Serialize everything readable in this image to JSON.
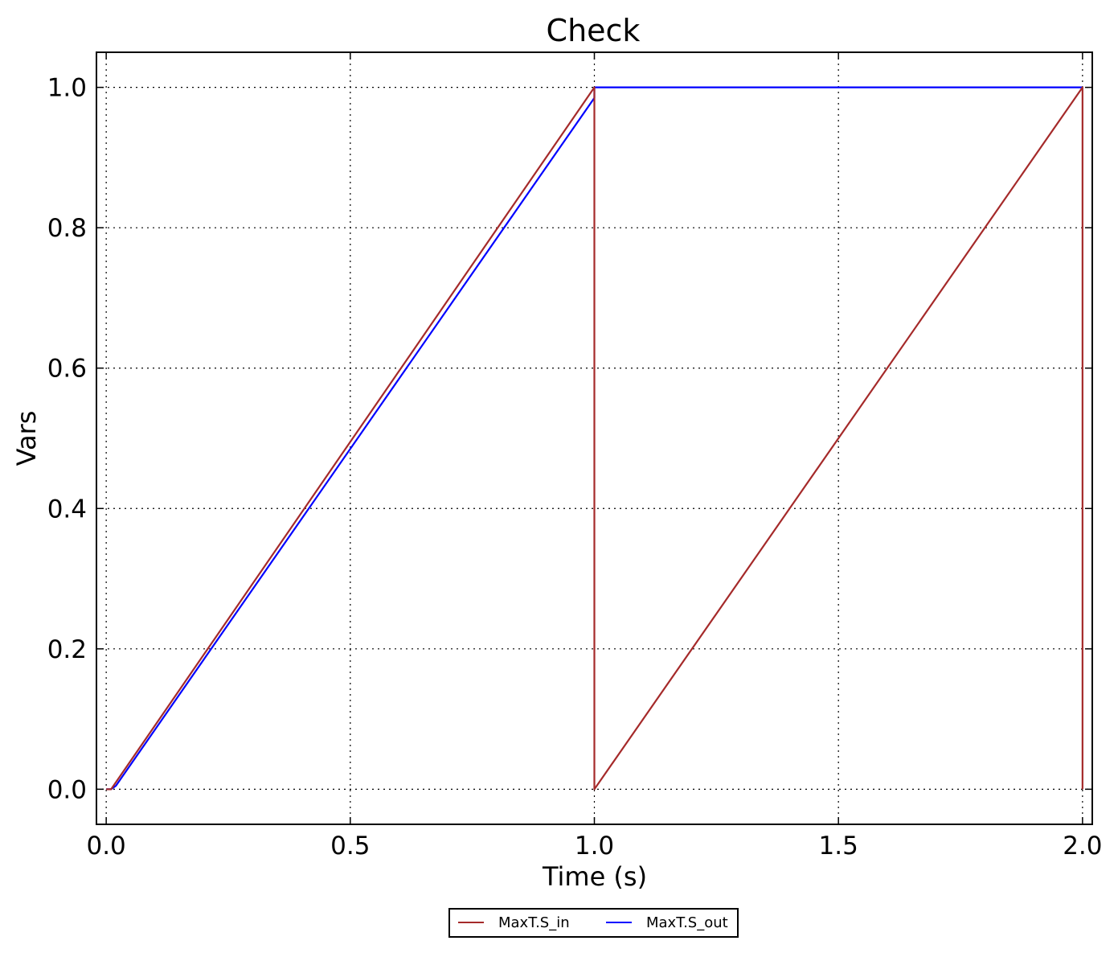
{
  "chart_data": {
    "type": "line",
    "title": "Check",
    "xlabel": "Time (s)",
    "ylabel": "Vars",
    "xlim": [
      -0.02,
      2.02
    ],
    "ylim": [
      -0.05,
      1.05
    ],
    "x_ticks": [
      0.0,
      0.5,
      1.0,
      1.5,
      2.0
    ],
    "x_tick_labels": [
      "0.0",
      "0.5",
      "1.0",
      "1.5",
      "2.0"
    ],
    "y_ticks": [
      0.0,
      0.2,
      0.4,
      0.6,
      0.8,
      1.0
    ],
    "y_tick_labels": [
      "0.0",
      "0.2",
      "0.4",
      "0.6",
      "0.8",
      "1.0"
    ],
    "grid": true,
    "grid_style": "dotted",
    "legend_position": "bottom-center, below plot",
    "series": [
      {
        "name": "MaxT.S_in",
        "color": "#a52a2a",
        "x": [
          0.0,
          0.01,
          1.0,
          1.0,
          1.0,
          2.0,
          2.0,
          2.0
        ],
        "y": [
          0.0,
          0.0,
          1.0,
          1.0,
          0.0,
          1.0,
          1.0,
          0.0
        ]
      },
      {
        "name": "MaxT.S_out",
        "color": "#0000ff",
        "x": [
          0.0,
          0.01,
          0.02,
          0.03,
          1.0,
          1.0,
          2.0
        ],
        "y": [
          0.0,
          0.0,
          0.005,
          0.015,
          0.985,
          1.0,
          1.0
        ]
      }
    ]
  }
}
